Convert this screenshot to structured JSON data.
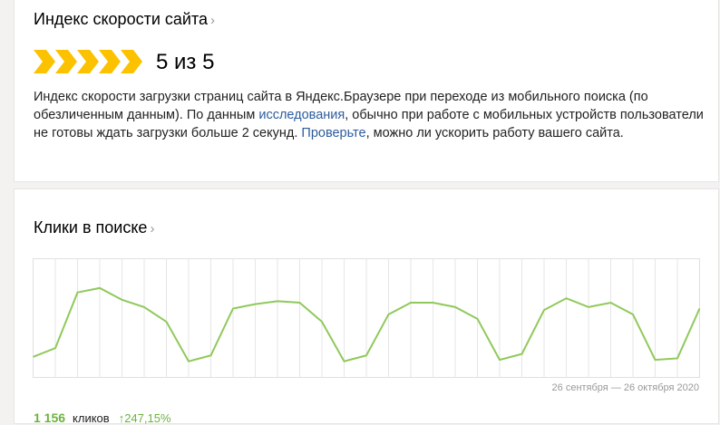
{
  "speed_card": {
    "title": "Индекс скорости сайта",
    "chevron": "›",
    "score": "5 из 5",
    "score_value": 5,
    "score_max": 5,
    "arrow_color": "#fcc200",
    "desc_1": "Индекс скорости загрузки страниц сайта в Яндекс.Браузере при переходе из мобильного поиска (по обезличенным данным). По данным ",
    "link_research": "исследования",
    "desc_2": ", обычно при работе с мобильных устройств пользователи не готовы ждать загрузки больше 2 секунд. ",
    "link_check": "Проверьте",
    "desc_3": ", можно ли ускорить работу вашего сайта."
  },
  "clicks_card": {
    "title": "Клики в поиске",
    "chevron": "›",
    "period": "26 сентября — 26 октября 2020",
    "total": "1 156",
    "unit": "кликов",
    "change": "↑247,15%"
  },
  "chart_data": {
    "type": "line",
    "title": "",
    "xlabel": "",
    "ylabel": "",
    "x_range": [
      "26 сентября 2020",
      "26 октября 2020"
    ],
    "values": [
      14,
      20,
      58,
      61,
      53,
      48,
      38,
      11,
      15,
      47,
      50,
      52,
      51,
      38,
      11,
      15,
      43,
      51,
      51,
      48,
      40,
      12,
      16,
      46,
      54,
      48,
      51,
      43,
      12,
      13,
      47
    ],
    "ylim": [
      0,
      81
    ],
    "grid": "vertical",
    "line_color": "#8fc95b"
  }
}
